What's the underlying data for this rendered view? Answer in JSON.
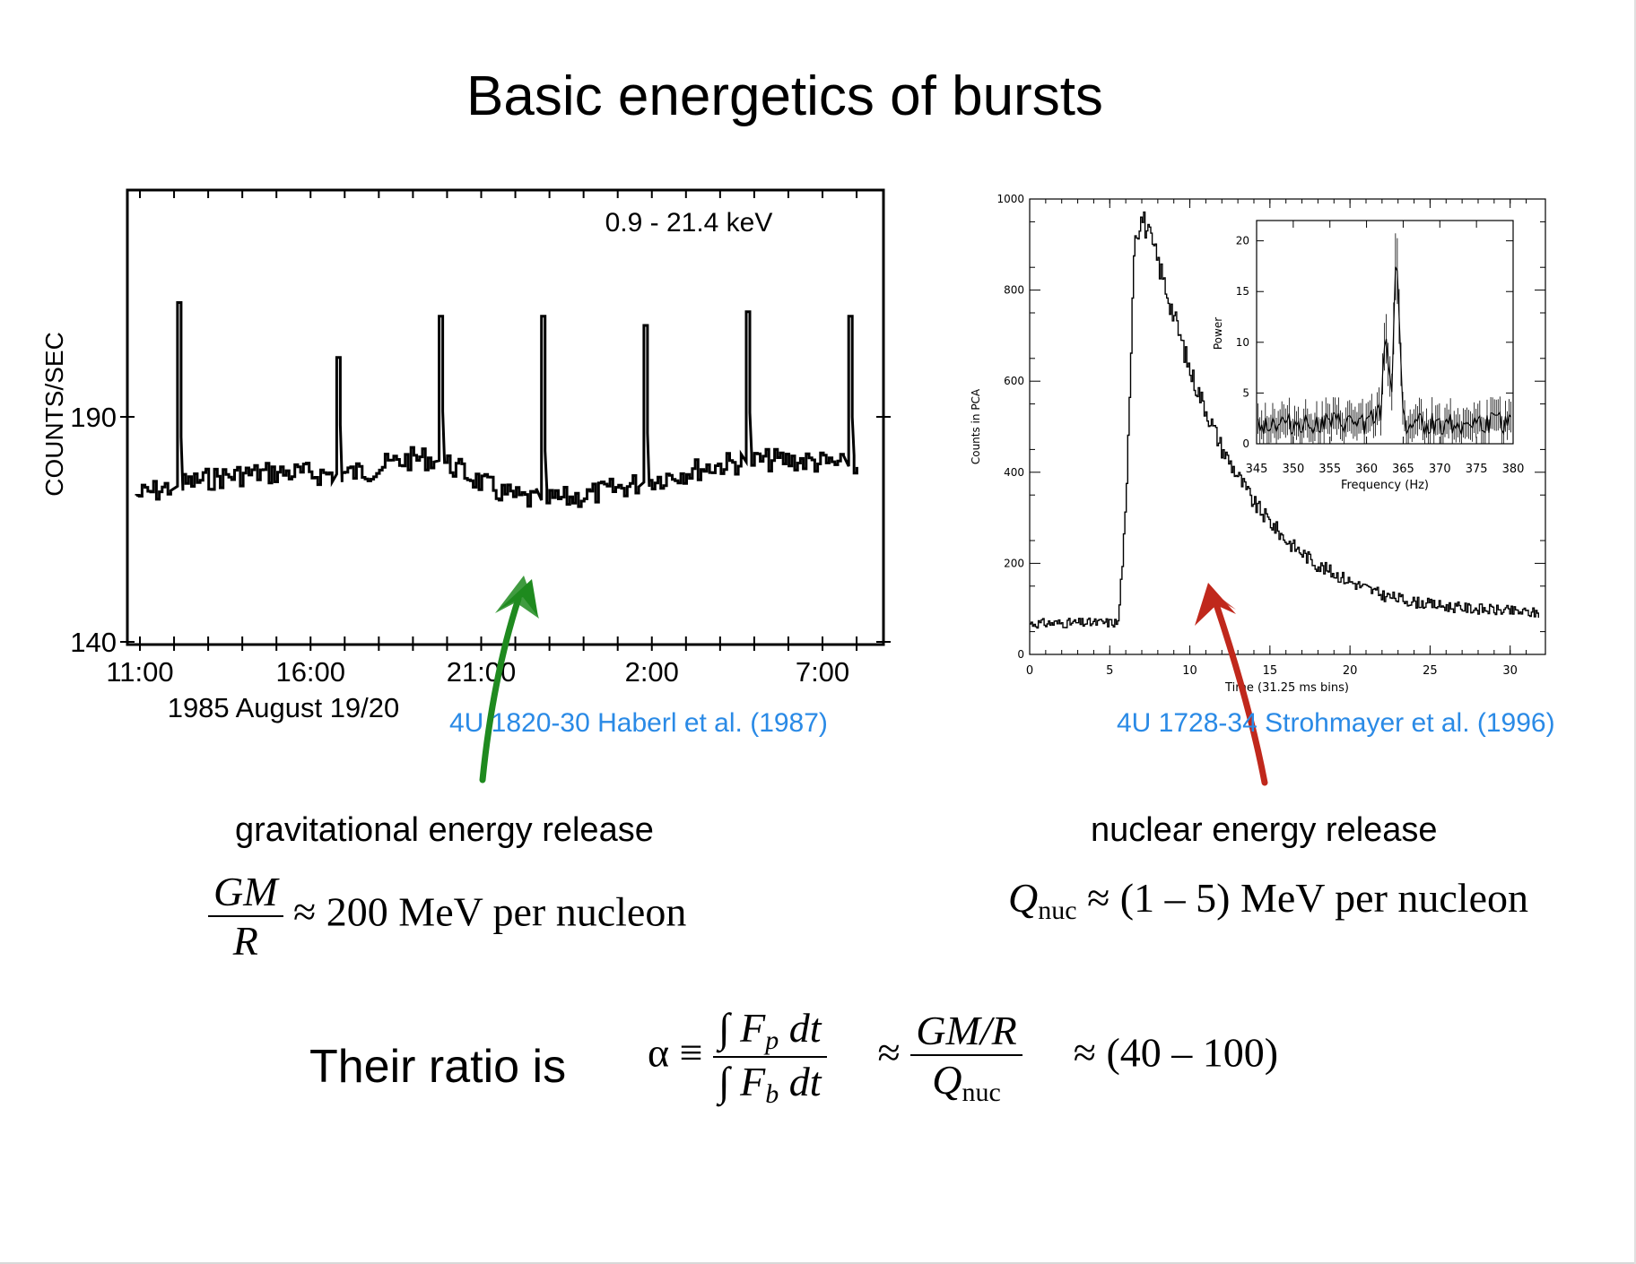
{
  "title": "Basic energetics of bursts",
  "chart_data": [
    {
      "type": "line",
      "annotation": "0.9 - 21.4 keV",
      "ylabel": "COUNTS/SEC",
      "xlabel": "1985 August 19/20",
      "x_ticklabels": [
        "11:00",
        "16:00",
        "21:00",
        "2:00",
        "7:00"
      ],
      "y_ticklabels": [
        "140",
        "190"
      ],
      "ylim": [
        140,
        190
      ],
      "burst_times": [
        "12:06",
        "16:46",
        "19:46",
        "22:46",
        "1:46",
        "4:46",
        "7:46"
      ],
      "burst_peak_counts": [
        215,
        203,
        212,
        212,
        210,
        213,
        212
      ],
      "grid": false
    },
    {
      "type": "line",
      "ylabel": "Counts in PCA",
      "xlabel": "Time (31.25 ms bins)",
      "xlim": [
        0,
        32
      ],
      "ylim": [
        0,
        1000
      ],
      "x_ticklabels": [
        "0",
        "5",
        "10",
        "15",
        "20",
        "25",
        "30"
      ],
      "y_ticklabels": [
        "0",
        "200",
        "400",
        "600",
        "800",
        "1000"
      ],
      "x": [
        0,
        5.5,
        6.0,
        6.5,
        7.0,
        8.0,
        9.0,
        10.0,
        12.0,
        14.0,
        16.0,
        18.0,
        20.0,
        22.0,
        24.0,
        26.0,
        28.0,
        30.0,
        32.0
      ],
      "y": [
        68,
        70,
        330,
        920,
        960,
        860,
        740,
        620,
        450,
        330,
        250,
        195,
        160,
        130,
        115,
        105,
        100,
        95,
        90
      ],
      "inset": {
        "type": "line",
        "ylabel": "Power",
        "xlabel": "Frequency (Hz)",
        "xlim": [
          345,
          380
        ],
        "ylim": [
          0,
          22
        ],
        "x_ticklabels": [
          "345",
          "350",
          "355",
          "360",
          "365",
          "370",
          "375",
          "380"
        ],
        "y_ticklabels": [
          "0",
          "5",
          "10",
          "15",
          "20"
        ],
        "x": [
          345,
          350,
          355,
          360,
          362,
          362.5,
          363,
          363.5,
          364,
          364.5,
          365,
          370,
          375,
          380
        ],
        "y": [
          2,
          2,
          2,
          2,
          3,
          11,
          8,
          5,
          20,
          12,
          2,
          2,
          2,
          2
        ]
      }
    }
  ],
  "captions": {
    "left": "4U 1820-30 Haberl et al. (1987)",
    "right": "4U 1728-34 Strohmayer et al. (1996)"
  },
  "labels": {
    "left": "gravitational energy release",
    "right": "nuclear energy release"
  },
  "equations": {
    "grav_num": "GM",
    "grav_den": "R",
    "grav_rest": "≈ 200 MeV per nucleon",
    "nuc_q": "Q",
    "nuc_sub": "nuc",
    "nuc_rest": "≈ (1 – 5) MeV per nucleon",
    "ratio_lead": "Their ratio is",
    "alpha": "α ≡",
    "int_num_pre": "∫ F",
    "int_num_sub": "p",
    "int_num_post": " dt",
    "int_den_pre": "∫ F",
    "int_den_sub": "b",
    "int_den_post": " dt",
    "approx1": "≈",
    "gmr": "GM/R",
    "approx2": "≈ (40 – 100)"
  },
  "arrows": {
    "left_color": "#1f8a1f",
    "right_color": "#c0281c"
  }
}
